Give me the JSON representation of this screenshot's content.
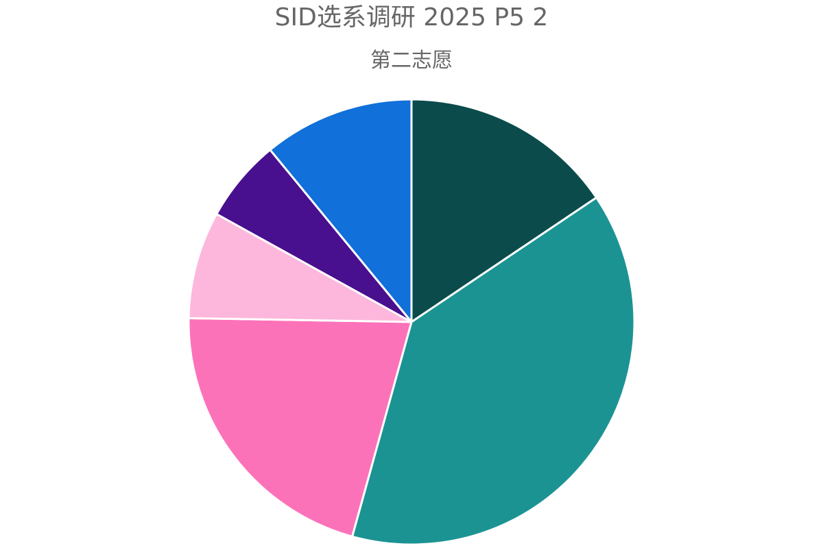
{
  "chart_data": {
    "type": "pie",
    "title": "SID选系调研 2025 P5 2",
    "subtitle": "第二志愿",
    "start_angle_deg": 0,
    "direction": "clockwise",
    "slice_border_color": "#ffffff",
    "text_color": "#666666",
    "slices": [
      {
        "value": 15.8,
        "color": "#0b4b4c"
      },
      {
        "value": 39.3,
        "color": "#1c9393"
      },
      {
        "value": 21.3,
        "color": "#fc72b9"
      },
      {
        "value": 7.9,
        "color": "#fdb7dc"
      },
      {
        "value": 6.1,
        "color": "#480f8e"
      },
      {
        "value": 11.1,
        "color": "#1170d9"
      }
    ]
  }
}
